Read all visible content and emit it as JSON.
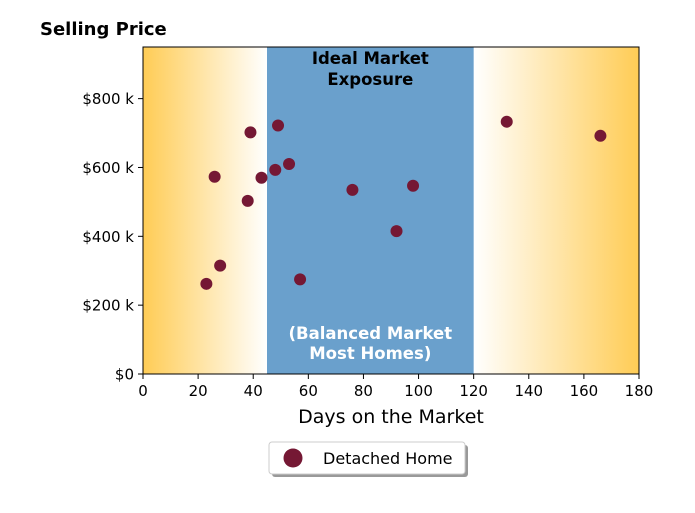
{
  "chart_data": {
    "type": "scatter",
    "title": "Selling Price",
    "xlabel": "Days on the Market",
    "ylabel": "",
    "xlim": [
      0,
      180
    ],
    "ylim": [
      0,
      950000
    ],
    "x_ticks": [
      0,
      20,
      40,
      60,
      80,
      100,
      120,
      140,
      160,
      180
    ],
    "y_ticks": [
      0,
      200000,
      400000,
      600000,
      800000
    ],
    "y_tick_labels": [
      "$0",
      "$200 k",
      "$400 k",
      "$600 k",
      "$800 k"
    ],
    "grid": false,
    "legend_position": "bottom-center",
    "band": {
      "x_start": 45,
      "x_end": 120,
      "color": "#6aa0cc",
      "title": [
        "Ideal Market",
        "Exposure"
      ],
      "subtitle": [
        "(Balanced Market",
        "Most Homes)"
      ]
    },
    "gradient_color": "#ffcc55",
    "series": [
      {
        "name": "Detached Home",
        "color": "#751834",
        "points": [
          {
            "x": 23,
            "y": 262000
          },
          {
            "x": 26,
            "y": 573000
          },
          {
            "x": 28,
            "y": 315000
          },
          {
            "x": 38,
            "y": 503000
          },
          {
            "x": 39,
            "y": 702000
          },
          {
            "x": 43,
            "y": 570000
          },
          {
            "x": 48,
            "y": 593000
          },
          {
            "x": 49,
            "y": 722000
          },
          {
            "x": 53,
            "y": 610000
          },
          {
            "x": 57,
            "y": 275000
          },
          {
            "x": 76,
            "y": 535000
          },
          {
            "x": 92,
            "y": 415000
          },
          {
            "x": 98,
            "y": 547000
          },
          {
            "x": 132,
            "y": 733000
          },
          {
            "x": 166,
            "y": 692000
          }
        ]
      }
    ]
  }
}
